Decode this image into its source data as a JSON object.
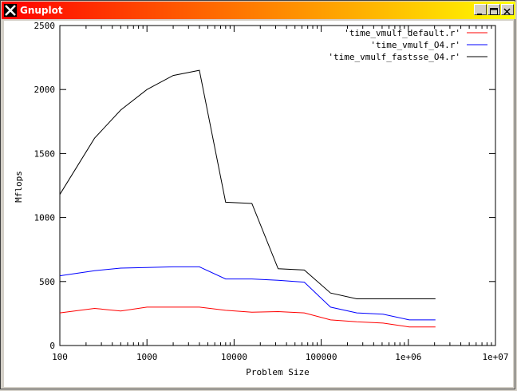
{
  "window": {
    "title": "Gnuplot"
  },
  "title_buttons": {
    "minimize": "minimize-icon",
    "maximize": "maximize-icon",
    "close": "close-icon"
  },
  "chart_data": {
    "type": "line",
    "title": "",
    "xlabel": "Problem Size",
    "ylabel": "Mflops",
    "x_scale": "log",
    "xlim": [
      100,
      10000000
    ],
    "ylim": [
      0,
      2500
    ],
    "grid": false,
    "legend_position": "top-right",
    "x_tick_labels": [
      "100",
      "1000",
      "10000",
      "100000",
      "1e+06",
      "1e+07"
    ],
    "y_tick_labels": [
      "0",
      "500",
      "1000",
      "1500",
      "2000",
      "2500"
    ],
    "x": [
      100,
      250,
      500,
      1000,
      2000,
      4000,
      8000,
      16000,
      32000,
      64000,
      128000,
      256000,
      512000,
      1024000,
      2048000
    ],
    "series": [
      {
        "name": "'time_vmulf_default.r'",
        "color": "#ff0000",
        "values": [
          255,
          290,
          270,
          300,
          300,
          300,
          275,
          260,
          265,
          255,
          200,
          185,
          175,
          145,
          145
        ]
      },
      {
        "name": "'time_vmulf_O4.r'",
        "color": "#0000ff",
        "values": [
          545,
          585,
          605,
          610,
          615,
          615,
          520,
          520,
          510,
          495,
          300,
          255,
          245,
          200,
          200
        ]
      },
      {
        "name": "'time_vmulf_fastsse_O4.r'",
        "color": "#000000",
        "values": [
          1180,
          1620,
          1840,
          2000,
          2110,
          2150,
          1120,
          1110,
          600,
          590,
          410,
          365,
          365,
          365,
          365
        ]
      }
    ]
  }
}
